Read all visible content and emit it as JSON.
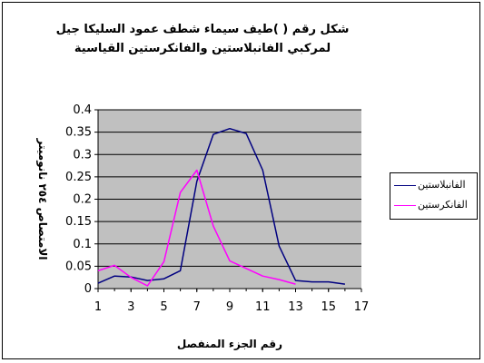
{
  "chart_data": {
    "type": "line",
    "title": "شكل رقم ( )طيف سيماء شطف عمود السليكا جيل",
    "subtitle": "لمركبي الفانبلاستين والفانكرستين القياسية",
    "xlabel": "رقم الجزء المنفصل",
    "ylabel": "الامتصاص ٢٥٤ نانوميتر",
    "xlim": [
      1,
      17
    ],
    "ylim": [
      0,
      0.4
    ],
    "x_ticks": [
      "1",
      "3",
      "5",
      "7",
      "9",
      "11",
      "13",
      "15",
      "17"
    ],
    "y_ticks": [
      "0",
      "0.05",
      "0.1",
      "0.15",
      "0.2",
      "0.25",
      "0.3",
      "0.35",
      "0.4"
    ],
    "grid": true,
    "legend_position": "right",
    "series": [
      {
        "name": "الفانبلاستين",
        "color": "#000080",
        "x": [
          1,
          2,
          3,
          4,
          5,
          6,
          7,
          8,
          9,
          10,
          11,
          12,
          13,
          14,
          15,
          16
        ],
        "values": [
          0.012,
          0.028,
          0.026,
          0.018,
          0.022,
          0.04,
          0.24,
          0.345,
          0.358,
          0.347,
          0.265,
          0.095,
          0.018,
          0.015,
          0.015,
          0.01
        ]
      },
      {
        "name": "الفانكرستين",
        "color": "#FF00FF",
        "x": [
          1,
          2,
          3,
          4,
          5,
          6,
          7,
          8,
          9,
          10,
          11,
          12,
          13
        ],
        "values": [
          0.04,
          0.052,
          0.025,
          0.006,
          0.06,
          0.215,
          0.265,
          0.14,
          0.062,
          0.045,
          0.028,
          0.02,
          0.01
        ]
      }
    ]
  }
}
